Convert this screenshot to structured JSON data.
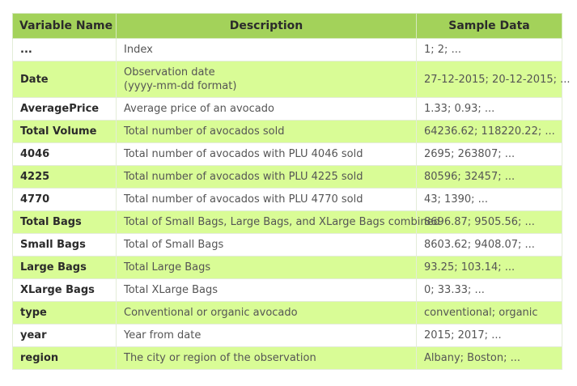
{
  "table": {
    "headers": [
      "Variable Name",
      "Description",
      "Sample Data"
    ],
    "rows": [
      {
        "name": "...",
        "desc": [
          "Index"
        ],
        "sample": "1; 2; ..."
      },
      {
        "name": "Date",
        "desc": [
          "Observation date",
          "(yyyy-mm-dd format)"
        ],
        "sample": "27-12-2015; 20-12-2015; ..."
      },
      {
        "name": "AveragePrice",
        "desc": [
          "Average price of an avocado"
        ],
        "sample": "1.33; 0.93; ..."
      },
      {
        "name": "Total Volume",
        "desc": [
          "Total number of avocados sold"
        ],
        "sample": "64236.62; 118220.22; ..."
      },
      {
        "name": "4046",
        "desc": [
          "Total number of avocados with PLU 4046 sold"
        ],
        "sample": "2695; 263807; ..."
      },
      {
        "name": "4225",
        "desc": [
          "Total number of avocados with PLU 4225 sold"
        ],
        "sample": "80596; 32457; ..."
      },
      {
        "name": "4770",
        "desc": [
          "Total number of avocados with PLU 4770 sold"
        ],
        "sample": "43; 1390; ..."
      },
      {
        "name": "Total Bags",
        "desc": [
          "Total of Small Bags, Large Bags, and XLarge Bags combined"
        ],
        "sample": "8696.87; 9505.56; ..."
      },
      {
        "name": "Small Bags",
        "desc": [
          "Total of Small Bags"
        ],
        "sample": "8603.62; 9408.07; ..."
      },
      {
        "name": "Large Bags",
        "desc": [
          "Total Large Bags"
        ],
        "sample": "93.25; 103.14; ..."
      },
      {
        "name": "XLarge Bags",
        "desc": [
          "Total XLarge Bags"
        ],
        "sample": "0; 33.33; ..."
      },
      {
        "name": "type",
        "desc": [
          "Conventional or organic avocado"
        ],
        "sample": "conventional; organic"
      },
      {
        "name": "year",
        "desc": [
          "Year from date"
        ],
        "sample": "2015; 2017; ..."
      },
      {
        "name": "region",
        "desc": [
          "The city or region of the observation"
        ],
        "sample": "Albany; Boston; ..."
      }
    ]
  },
  "colors": {
    "header_bg": "#a3d25a",
    "stripe_bg": "#d9fc96",
    "row_bg": "#ffffff"
  }
}
